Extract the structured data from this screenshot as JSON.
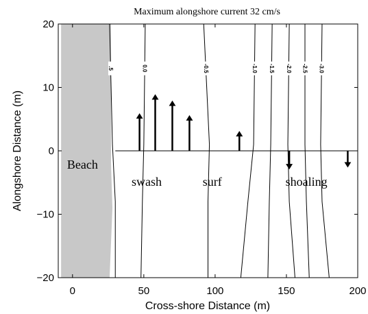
{
  "chart_data": {
    "type": "vector-contour",
    "title": "Maximum alongshore current 32 cm/s",
    "xlabel": "Cross-shore Distance (m)",
    "ylabel": "Alongshore Distance (m)",
    "xlim": [
      -10,
      200
    ],
    "ylim": [
      -20,
      20
    ],
    "xticks": [
      0,
      50,
      100,
      150,
      200
    ],
    "xtick_labels": [
      "0",
      "50",
      "100",
      "150",
      "200"
    ],
    "yticks": [
      -20,
      -10,
      0,
      10,
      20
    ],
    "ytick_labels": [
      "−20",
      "−10",
      "0",
      "10",
      "20"
    ],
    "beach": {
      "label": "Beach",
      "color": "#c8c8c8",
      "x_start": -8,
      "shoreline": [
        [
          27,
          20
        ],
        [
          27,
          -2
        ],
        [
          28,
          -9
        ],
        [
          26,
          -20
        ]
      ]
    },
    "contours": [
      {
        "label": ".5",
        "points": [
          [
            26,
            20
          ],
          [
            28,
            1
          ],
          [
            30,
            -8
          ],
          [
            30,
            -20
          ]
        ]
      },
      {
        "label": "0.0",
        "points": [
          [
            51,
            20
          ],
          [
            50,
            1
          ],
          [
            49,
            -8
          ],
          [
            48,
            -20
          ]
        ]
      },
      {
        "label": "-0.5",
        "points": [
          [
            92,
            20
          ],
          [
            96,
            1
          ],
          [
            95,
            -8
          ],
          [
            95,
            -20
          ]
        ]
      },
      {
        "label": "-1.0",
        "points": [
          [
            128,
            20
          ],
          [
            127,
            1
          ],
          [
            123,
            -8
          ],
          [
            118,
            -20
          ]
        ]
      },
      {
        "label": "-1.5",
        "points": [
          [
            140,
            20
          ],
          [
            139,
            1
          ],
          [
            138,
            -8
          ],
          [
            137,
            -20
          ]
        ]
      },
      {
        "label": "-2.0",
        "points": [
          [
            152,
            20
          ],
          [
            151,
            1
          ],
          [
            152,
            -8
          ],
          [
            156,
            -20
          ]
        ]
      },
      {
        "label": "-2.5",
        "points": [
          [
            163,
            20
          ],
          [
            163,
            1
          ],
          [
            164,
            -8
          ],
          [
            166,
            -20
          ]
        ]
      },
      {
        "label": "-3.0",
        "points": [
          [
            175,
            20
          ],
          [
            174,
            1
          ],
          [
            175,
            -8
          ],
          [
            180,
            -20
          ]
        ]
      }
    ],
    "contour_label_y": 13,
    "baseline": {
      "y": 0,
      "x_start": 30,
      "x_end": 200
    },
    "vectors": [
      {
        "x": 47,
        "v": 5.5
      },
      {
        "x": 58,
        "v": 8.5
      },
      {
        "x": 70,
        "v": 7.5
      },
      {
        "x": 82,
        "v": 5.2
      },
      {
        "x": 117,
        "v": 2.7
      },
      {
        "x": 152,
        "v": -2.5
      },
      {
        "x": 193,
        "v": -2.2
      }
    ],
    "region_labels": [
      {
        "text": "swash",
        "x": 52,
        "y": -5.5
      },
      {
        "text": "surf",
        "x": 98,
        "y": -5.5
      },
      {
        "text": "shoaling",
        "x": 164,
        "y": -5.5
      }
    ],
    "grid": false
  }
}
